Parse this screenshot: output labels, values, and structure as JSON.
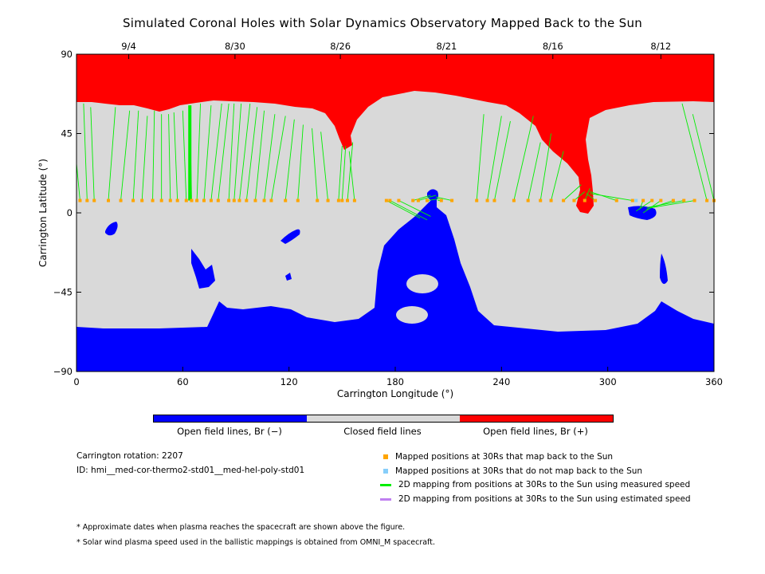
{
  "chart_data": {
    "type": "heatmap",
    "title": "Simulated Coronal Holes with Solar Dynamics Observatory Mapped Back to the Sun",
    "xlabel": "Carrington Longitude (°)",
    "ylabel": "Carrington Latitude (°)",
    "xlim": [
      0,
      360
    ],
    "ylim": [
      -90,
      90
    ],
    "x_ticks": [
      0,
      60,
      120,
      180,
      240,
      300,
      360
    ],
    "y_ticks": [
      -90,
      -45,
      0,
      45,
      90
    ],
    "x_tick_labels": [
      "0",
      "60",
      "120",
      "180",
      "240",
      "300",
      "360"
    ],
    "y_tick_labels": [
      "−90",
      "−45",
      "0",
      "45",
      "90"
    ],
    "top_axis_dates": [
      {
        "label": "9/4",
        "longitude": 29.5
      },
      {
        "label": "8/30",
        "longitude": 89.5
      },
      {
        "label": "8/26",
        "longitude": 149
      },
      {
        "label": "8/21",
        "longitude": 209
      },
      {
        "label": "8/16",
        "longitude": 269
      },
      {
        "label": "8/12",
        "longitude": 330
      }
    ],
    "categories": [
      {
        "name": "Open field lines, Br (−)",
        "color": "#0000ff"
      },
      {
        "name": "Closed field lines",
        "color": "#d9d9d9"
      },
      {
        "name": "Open field lines, Br (+)",
        "color": "#ff0000"
      }
    ],
    "mapped_positions_latitude": 7,
    "mapped_positions_longitudes": [
      2,
      6,
      10,
      18,
      25,
      32,
      37,
      43,
      48,
      53,
      57,
      62,
      65,
      68,
      72,
      76,
      80,
      86,
      89,
      92,
      96,
      101,
      106,
      110,
      118,
      125,
      136,
      142,
      148,
      150,
      153,
      157,
      175,
      177,
      182,
      190,
      193,
      198,
      206,
      212,
      226,
      232,
      236,
      247,
      255,
      262,
      268,
      275,
      281,
      287,
      293,
      305,
      314,
      320,
      325,
      330,
      337,
      343,
      349,
      356,
      360
    ],
    "unmapped_positions_longitudes": [
      316
    ],
    "mapping_lines": [
      {
        "from": [
          2,
          7
        ],
        "to": [
          0,
          28
        ]
      },
      {
        "from": [
          6,
          7
        ],
        "to": [
          4,
          62
        ]
      },
      {
        "from": [
          10,
          7
        ],
        "to": [
          8,
          60
        ]
      },
      {
        "from": [
          18,
          7
        ],
        "to": [
          22,
          60
        ]
      },
      {
        "from": [
          25,
          7
        ],
        "to": [
          30,
          58
        ]
      },
      {
        "from": [
          32,
          7
        ],
        "to": [
          35,
          58
        ]
      },
      {
        "from": [
          37,
          7
        ],
        "to": [
          40,
          55
        ]
      },
      {
        "from": [
          43,
          7
        ],
        "to": [
          44,
          58
        ]
      },
      {
        "from": [
          48,
          7
        ],
        "to": [
          48,
          56
        ]
      },
      {
        "from": [
          53,
          7
        ],
        "to": [
          52,
          56
        ]
      },
      {
        "from": [
          57,
          7
        ],
        "to": [
          55,
          57
        ]
      },
      {
        "from": [
          62,
          7
        ],
        "to": [
          60,
          58
        ]
      },
      {
        "from": [
          65,
          7
        ],
        "to": [
          64,
          61
        ]
      },
      {
        "from": [
          68,
          7
        ],
        "to": [
          70,
          62
        ]
      },
      {
        "from": [
          72,
          7
        ],
        "to": [
          76,
          61
        ]
      },
      {
        "from": [
          76,
          7
        ],
        "to": [
          82,
          62
        ]
      },
      {
        "from": [
          80,
          7
        ],
        "to": [
          86,
          62
        ]
      },
      {
        "from": [
          86,
          7
        ],
        "to": [
          89,
          62
        ]
      },
      {
        "from": [
          89,
          7
        ],
        "to": [
          93,
          62
        ]
      },
      {
        "from": [
          92,
          7
        ],
        "to": [
          98,
          62
        ]
      },
      {
        "from": [
          96,
          7
        ],
        "to": [
          102,
          60
        ]
      },
      {
        "from": [
          101,
          7
        ],
        "to": [
          106,
          58
        ]
      },
      {
        "from": [
          106,
          7
        ],
        "to": [
          112,
          56
        ]
      },
      {
        "from": [
          110,
          7
        ],
        "to": [
          118,
          55
        ]
      },
      {
        "from": [
          118,
          7
        ],
        "to": [
          123,
          53
        ]
      },
      {
        "from": [
          125,
          7
        ],
        "to": [
          128,
          50
        ]
      },
      {
        "from": [
          136,
          7
        ],
        "to": [
          133,
          48
        ]
      },
      {
        "from": [
          142,
          7
        ],
        "to": [
          138,
          46
        ]
      },
      {
        "from": [
          148,
          7
        ],
        "to": [
          150,
          38
        ]
      },
      {
        "from": [
          150,
          7
        ],
        "to": [
          152,
          38
        ]
      },
      {
        "from": [
          153,
          7
        ],
        "to": [
          156,
          40
        ]
      },
      {
        "from": [
          157,
          7
        ],
        "to": [
          154,
          35
        ]
      },
      {
        "from": [
          175,
          7
        ],
        "to": [
          194,
          -3
        ]
      },
      {
        "from": [
          177,
          7
        ],
        "to": [
          198,
          -4
        ]
      },
      {
        "from": [
          182,
          7
        ],
        "to": [
          200,
          -2
        ]
      },
      {
        "from": [
          190,
          7
        ],
        "to": [
          200,
          10
        ]
      },
      {
        "from": [
          193,
          7
        ],
        "to": [
          203,
          10
        ]
      },
      {
        "from": [
          198,
          7
        ],
        "to": [
          205,
          8
        ]
      },
      {
        "from": [
          206,
          7
        ],
        "to": [
          204,
          7
        ]
      },
      {
        "from": [
          212,
          7
        ],
        "to": [
          203,
          9
        ]
      },
      {
        "from": [
          226,
          7
        ],
        "to": [
          230,
          56
        ]
      },
      {
        "from": [
          232,
          7
        ],
        "to": [
          240,
          55
        ]
      },
      {
        "from": [
          236,
          7
        ],
        "to": [
          245,
          52
        ]
      },
      {
        "from": [
          247,
          7
        ],
        "to": [
          258,
          55
        ]
      },
      {
        "from": [
          255,
          7
        ],
        "to": [
          262,
          40
        ]
      },
      {
        "from": [
          262,
          7
        ],
        "to": [
          268,
          45
        ]
      },
      {
        "from": [
          268,
          7
        ],
        "to": [
          275,
          35
        ]
      },
      {
        "from": [
          275,
          7
        ],
        "to": [
          285,
          16
        ]
      },
      {
        "from": [
          281,
          7
        ],
        "to": [
          287,
          12
        ]
      },
      {
        "from": [
          287,
          7
        ],
        "to": [
          290,
          14
        ]
      },
      {
        "from": [
          293,
          7
        ],
        "to": [
          288,
          11
        ]
      },
      {
        "from": [
          305,
          7
        ],
        "to": [
          290,
          12
        ]
      },
      {
        "from": [
          314,
          7
        ],
        "to": [
          290,
          11
        ]
      },
      {
        "from": [
          320,
          7
        ],
        "to": [
          318,
          2
        ]
      },
      {
        "from": [
          325,
          7
        ],
        "to": [
          316,
          1
        ]
      },
      {
        "from": [
          330,
          7
        ],
        "to": [
          320,
          0
        ]
      },
      {
        "from": [
          337,
          7
        ],
        "to": [
          322,
          2
        ]
      },
      {
        "from": [
          343,
          7
        ],
        "to": [
          322,
          3
        ]
      },
      {
        "from": [
          349,
          7
        ],
        "to": [
          325,
          3
        ]
      },
      {
        "from": [
          356,
          7
        ],
        "to": [
          342,
          62
        ]
      },
      {
        "from": [
          360,
          7
        ],
        "to": [
          348,
          56
        ]
      }
    ]
  },
  "colors": {
    "open_negative": "#0000ff",
    "closed": "#d9d9d9",
    "open_positive": "#ff0000",
    "mapped": "#ffa500",
    "unmapped": "#87cefa",
    "measured_line": "#00ee00",
    "estimated_line": "#c080f0"
  },
  "info": {
    "rotation": "Carrington rotation: 2207",
    "model_id": "ID: hmi__med-cor-thermo2-std01__med-hel-poly-std01"
  },
  "legend": {
    "mapped": "Mapped positions at 30Rs that map back to the Sun",
    "unmapped": "Mapped positions at 30Rs that do not map back to the Sun",
    "measured": "2D mapping from positions at 30Rs to the Sun using measured speed",
    "estimated": "2D mapping from positions at 30Rs to the Sun using estimated speed"
  },
  "footnotes": {
    "dates_note": "* Approximate dates when plasma reaches the spacecraft are shown above the figure.",
    "speed_note": "* Solar wind plasma speed used in the ballistic mappings is obtained from OMNI_M spacecraft."
  }
}
